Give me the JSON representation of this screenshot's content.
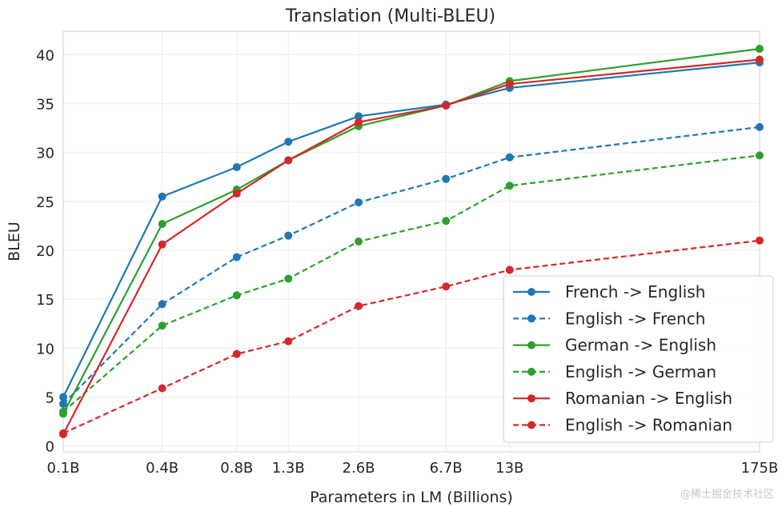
{
  "chart_data": {
    "type": "line",
    "title": "Translation (Multi-BLEU)",
    "xlabel": "Parameters in LM (Billions)",
    "ylabel": "BLEU",
    "categories": [
      "0.1B",
      "0.4B",
      "0.8B",
      "1.3B",
      "2.6B",
      "6.7B",
      "13B",
      "175B"
    ],
    "x_scale": "log",
    "x_values": [
      0.125,
      0.35,
      0.76,
      1.3,
      2.7,
      6.7,
      13,
      175
    ],
    "y_ticks": [
      0,
      5,
      10,
      15,
      20,
      25,
      30,
      35,
      40
    ],
    "ylim": [
      -0.6,
      42.4
    ],
    "grid": true,
    "legend_position": "lower-right",
    "series": [
      {
        "name": "French -> English",
        "color": "#1f77b4",
        "dashed": false,
        "values": [
          5.0,
          25.5,
          28.5,
          31.1,
          33.7,
          34.9,
          36.6,
          39.2
        ]
      },
      {
        "name": "English -> French",
        "color": "#1f77b4",
        "dashed": true,
        "values": [
          4.3,
          14.5,
          19.3,
          21.5,
          24.9,
          27.3,
          29.5,
          32.6
        ]
      },
      {
        "name": "German -> English",
        "color": "#2ca02c",
        "dashed": false,
        "values": [
          3.3,
          22.7,
          26.2,
          29.2,
          32.7,
          34.8,
          37.3,
          40.6
        ]
      },
      {
        "name": "English -> German",
        "color": "#2ca02c",
        "dashed": true,
        "values": [
          3.5,
          12.3,
          15.4,
          17.1,
          20.9,
          23.0,
          26.6,
          29.7
        ]
      },
      {
        "name": "Romanian -> English",
        "color": "#d62728",
        "dashed": false,
        "values": [
          1.2,
          20.6,
          25.8,
          29.2,
          33.1,
          34.8,
          37.0,
          39.5
        ]
      },
      {
        "name": "English -> Romanian",
        "color": "#d62728",
        "dashed": true,
        "values": [
          1.3,
          5.9,
          9.4,
          10.7,
          14.3,
          16.3,
          18.0,
          21.0
        ]
      }
    ]
  },
  "watermark": "@稀土掘金技术社区"
}
